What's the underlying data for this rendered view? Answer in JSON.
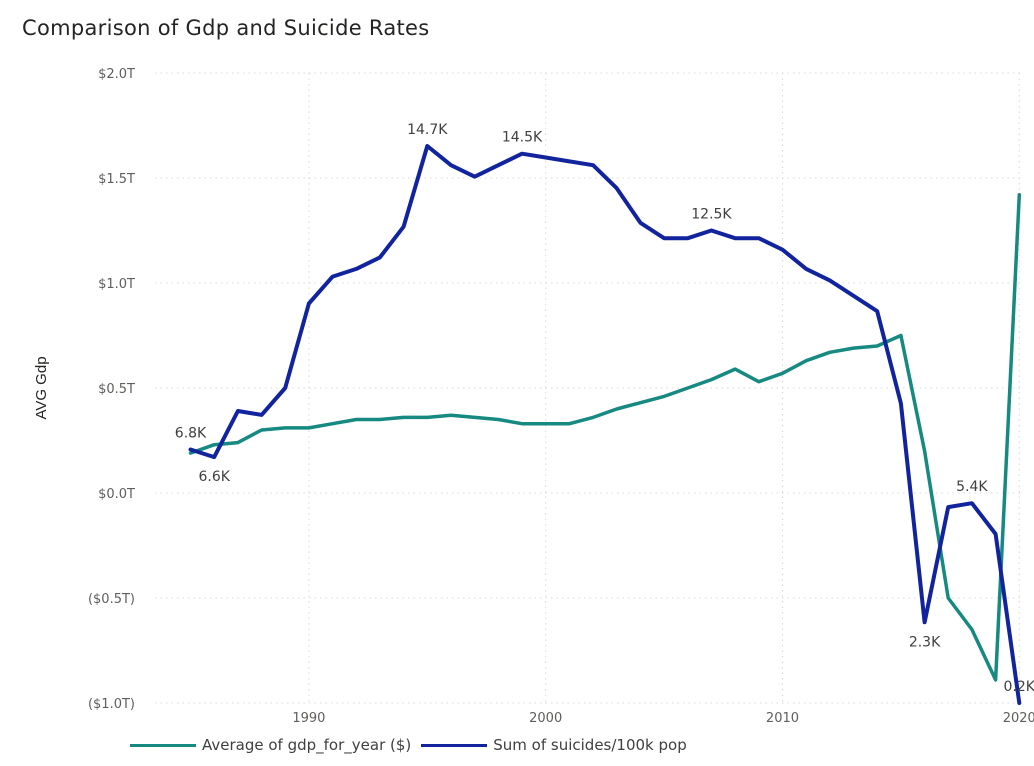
{
  "chart_data": {
    "type": "line",
    "title": "Comparison of Gdp and Suicide Rates",
    "ylabel": "AVG Gdp",
    "xlabel": "",
    "x_ticks": [
      "1990",
      "2000",
      "2010",
      "2020"
    ],
    "x_range": [
      1983.5,
      2020.2
    ],
    "y_ticks": [
      {
        "value": 2.0,
        "label": "$2.0T"
      },
      {
        "value": 1.5,
        "label": "$1.5T"
      },
      {
        "value": 1.0,
        "label": "$1.0T"
      },
      {
        "value": 0.5,
        "label": "$0.5T"
      },
      {
        "value": 0.0,
        "label": "$0.0T"
      },
      {
        "value": -0.5,
        "label": "($0.5T)"
      },
      {
        "value": -1.0,
        "label": "($1.0T)"
      }
    ],
    "ylim": [
      -1.0,
      2.0
    ],
    "grid": true,
    "legend_position": "bottom-left",
    "series": [
      {
        "name": "Average of  gdp_for_year ($)",
        "axis": "left",
        "color": "#168980",
        "x": [
          1985,
          1986,
          1987,
          1988,
          1989,
          1990,
          1991,
          1992,
          1993,
          1994,
          1995,
          1996,
          1997,
          1998,
          1999,
          2000,
          2001,
          2002,
          2003,
          2004,
          2005,
          2006,
          2007,
          2008,
          2009,
          2010,
          2011,
          2012,
          2013,
          2014,
          2015,
          2016,
          2017,
          2018,
          2019,
          2020
        ],
        "values": [
          0.19,
          0.23,
          0.24,
          0.3,
          0.31,
          0.31,
          0.33,
          0.35,
          0.35,
          0.36,
          0.36,
          0.37,
          0.36,
          0.35,
          0.33,
          0.33,
          0.33,
          0.36,
          0.4,
          0.43,
          0.46,
          0.5,
          0.54,
          0.59,
          0.53,
          0.57,
          0.63,
          0.67,
          0.69,
          0.7,
          0.75,
          0.2,
          -0.5,
          -0.65,
          -0.89,
          1.42
        ]
      },
      {
        "name": "Sum of suicides/100k pop",
        "axis": "right",
        "color": "#12239e",
        "x": [
          1985,
          1986,
          1987,
          1988,
          1989,
          1990,
          1991,
          1992,
          1993,
          1994,
          1995,
          1996,
          1997,
          1998,
          1999,
          2000,
          2001,
          2002,
          2003,
          2004,
          2005,
          2006,
          2007,
          2008,
          2009,
          2010,
          2011,
          2012,
          2013,
          2014,
          2015,
          2016,
          2017,
          2018,
          2019,
          2020
        ],
        "values": [
          6.8,
          6.6,
          7.8,
          7.7,
          8.4,
          10.6,
          11.3,
          11.5,
          11.8,
          12.6,
          14.7,
          14.2,
          13.9,
          14.2,
          14.5,
          14.4,
          14.3,
          14.2,
          13.6,
          12.7,
          12.3,
          12.3,
          12.5,
          12.3,
          12.3,
          12.0,
          11.5,
          11.2,
          10.8,
          10.4,
          8.0,
          2.3,
          5.3,
          5.4,
          4.6,
          0.2
        ],
        "data_labels": [
          {
            "x": 1985,
            "label": "6.8K",
            "position": "above"
          },
          {
            "x": 1986,
            "label": "6.6K",
            "position": "below"
          },
          {
            "x": 1995,
            "label": "14.7K",
            "position": "above"
          },
          {
            "x": 1999,
            "label": "14.5K",
            "position": "above"
          },
          {
            "x": 2007,
            "label": "12.5K",
            "position": "above"
          },
          {
            "x": 2016,
            "label": "2.3K",
            "position": "below"
          },
          {
            "x": 2018,
            "label": "5.4K",
            "position": "above"
          },
          {
            "x": 2020,
            "label": "0.2K",
            "position": "above"
          }
        ]
      }
    ],
    "right_axis_hidden": true,
    "right_ylim": [
      0.2,
      16.6
    ]
  }
}
